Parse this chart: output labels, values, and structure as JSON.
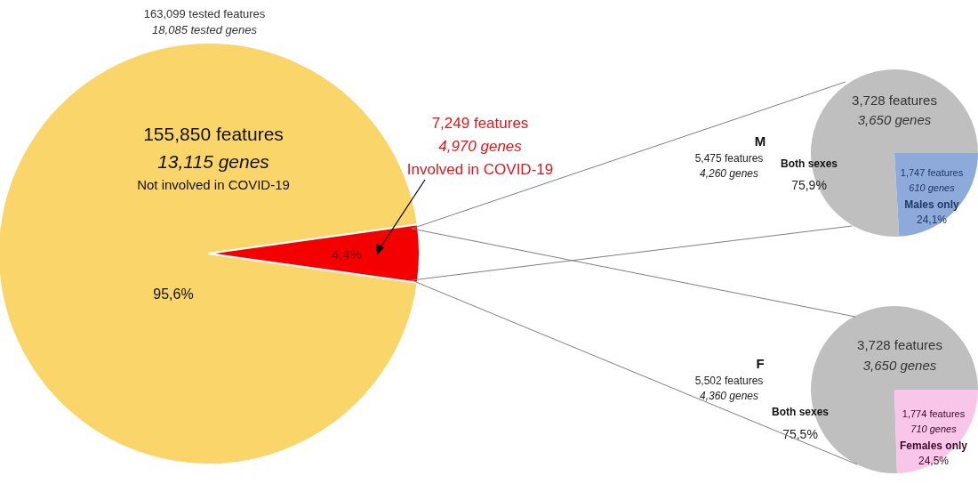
{
  "chart_data": [
    {
      "type": "pie",
      "title": "163,099 tested features",
      "subtitle": "18,085 tested genes",
      "categories": [
        "Not involved in COVID-19",
        "Involved in COVID-19"
      ],
      "values": [
        95.6,
        4.4
      ],
      "colors": [
        "#fad56a",
        "#f50000"
      ],
      "value_labels": [
        "95,6%",
        "4,4%"
      ],
      "annotations": [
        "155,850 features",
        "13,115 genes",
        "7,249 features",
        "4,970 genes"
      ]
    },
    {
      "type": "pie",
      "title": "M",
      "subtitle": "5,475 features",
      "categories": [
        "Both sexes",
        "Males only"
      ],
      "values": [
        75.9,
        24.1
      ],
      "colors": [
        "#bfbfbf",
        "#8eaadb"
      ],
      "value_labels": [
        "75,9%",
        "24,1%"
      ],
      "annotations": [
        "4,260 genes",
        "3,728 features",
        "3,650 genes",
        "1,747 features",
        "610 genes"
      ]
    },
    {
      "type": "pie",
      "title": "F",
      "subtitle": "5,502 features",
      "categories": [
        "Both sexes",
        "Females only"
      ],
      "values": [
        75.5,
        24.5
      ],
      "colors": [
        "#bfbfbf",
        "#f7c6e8"
      ],
      "value_labels": [
        "75,5%",
        "24,5%"
      ],
      "annotations": [
        "4,360 genes",
        "3,728 features",
        "3,650 genes",
        "1,774 features",
        "710 genes"
      ]
    }
  ]
}
